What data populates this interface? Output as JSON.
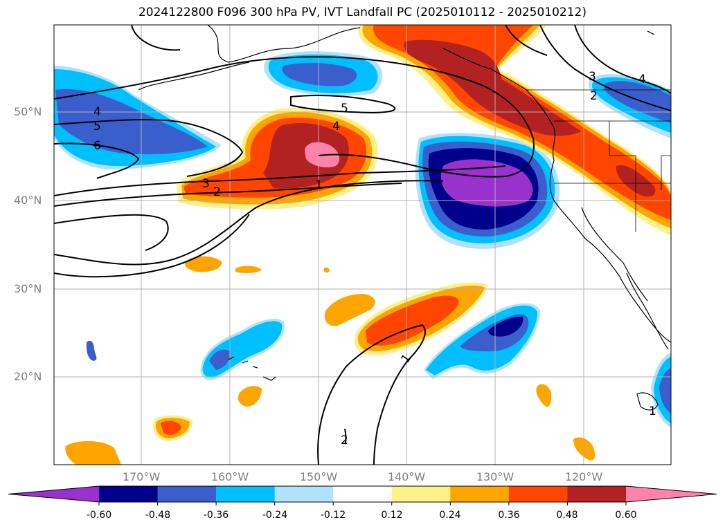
{
  "title": "2024122800 F096 300 hPa PV, IVT Landfall PC (2025010112 - 2025010212)",
  "map": {
    "lat_labels": [
      "50°N",
      "40°N",
      "30°N",
      "20°N"
    ],
    "lon_labels": [
      "170°W",
      "160°W",
      "150°W",
      "140°W",
      "130°W",
      "120°W"
    ],
    "contour_labels": [
      "4",
      "5",
      "6",
      "5",
      "4",
      "3",
      "2",
      "1",
      "3",
      "2",
      "4",
      "1",
      "1",
      "2"
    ]
  },
  "colorbar": {
    "colors": [
      "#9932cc",
      "#00008b",
      "#3a5fcd",
      "#00bfff",
      "#b0e2ff",
      "#ffffff",
      "#fff08a",
      "#ffa500",
      "#ff4500",
      "#b22222",
      "#ff82ab"
    ],
    "tick_labels": [
      "-0.60",
      "-0.48",
      "-0.36",
      "-0.24",
      "-0.12",
      "0.12",
      "0.24",
      "0.36",
      "0.48",
      "0.60"
    ]
  }
}
